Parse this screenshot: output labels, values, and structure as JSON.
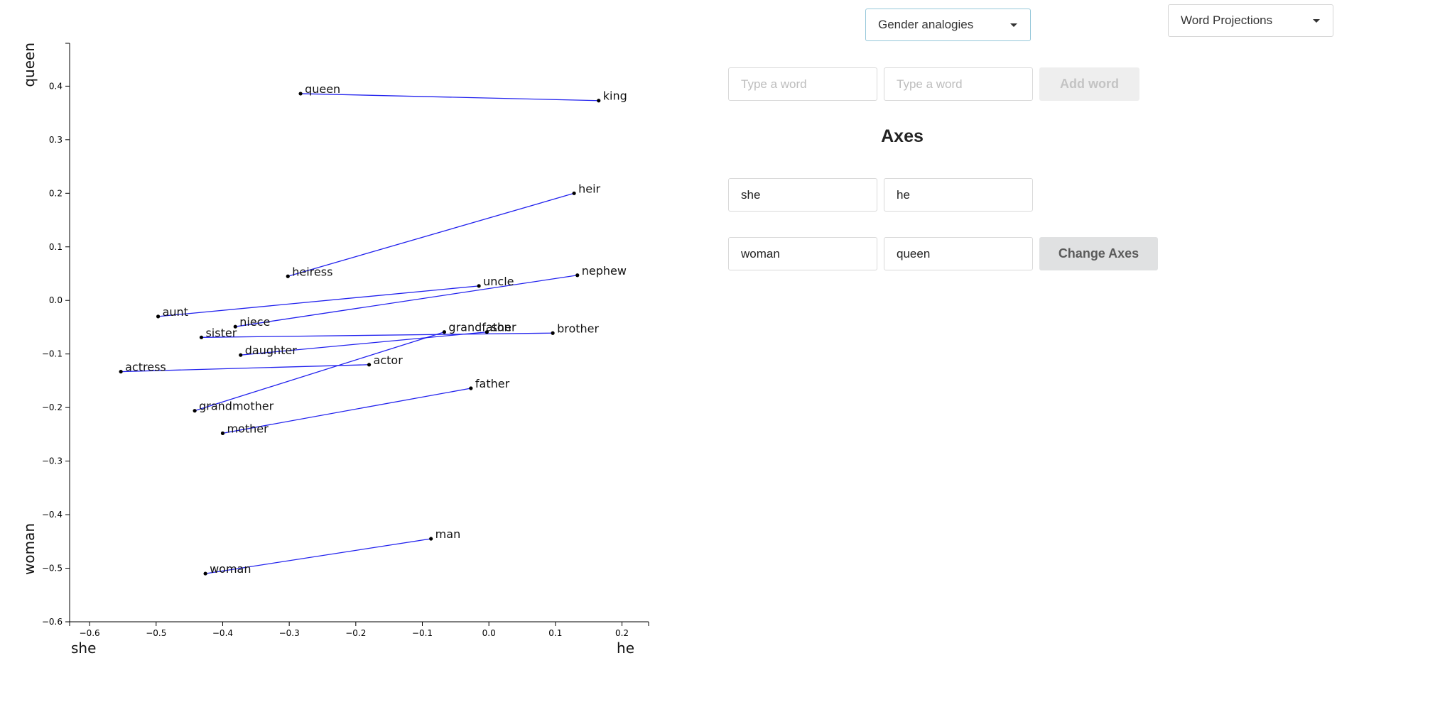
{
  "controls": {
    "analogy_select": "Gender analogies",
    "view_select": "Word Projections",
    "word_input_placeholder_1": "Type a word",
    "word_input_placeholder_2": "Type a word",
    "add_word_label": "Add word",
    "axes_heading": "Axes",
    "axis_x_neg": "she",
    "axis_x_pos": "he",
    "axis_y_neg": "woman",
    "axis_y_pos": "queen",
    "change_axes_label": "Change Axes"
  },
  "chart_data": {
    "type": "scatter",
    "xlabel_left": "she",
    "xlabel_right": "he",
    "ylabel_bottom": "woman",
    "ylabel_top": "queen",
    "xlim": [
      -0.63,
      0.24
    ],
    "ylim": [
      -0.6,
      0.48
    ],
    "x_ticks": [
      -0.6,
      -0.5,
      -0.4,
      -0.3,
      -0.2,
      -0.1,
      0.0,
      0.1,
      0.2
    ],
    "y_ticks": [
      0.4,
      0.3,
      0.2,
      0.1,
      0.0,
      -0.1,
      -0.2,
      -0.3,
      -0.4,
      -0.5,
      -0.6
    ],
    "grid": false,
    "line_color": "#2222ee",
    "points": [
      {
        "word": "queen",
        "x": -0.283,
        "y": 0.386
      },
      {
        "word": "king",
        "x": 0.165,
        "y": 0.373
      },
      {
        "word": "heir",
        "x": 0.128,
        "y": 0.2
      },
      {
        "word": "heiress",
        "x": -0.302,
        "y": 0.045
      },
      {
        "word": "uncle",
        "x": -0.015,
        "y": 0.027
      },
      {
        "word": "nephew",
        "x": 0.133,
        "y": 0.047
      },
      {
        "word": "aunt",
        "x": -0.497,
        "y": -0.03
      },
      {
        "word": "niece",
        "x": -0.381,
        "y": -0.049
      },
      {
        "word": "sister",
        "x": -0.432,
        "y": -0.069
      },
      {
        "word": "grandfather",
        "x": -0.067,
        "y": -0.059
      },
      {
        "word": "son",
        "x": -0.003,
        "y": -0.059
      },
      {
        "word": "brother",
        "x": 0.096,
        "y": -0.061
      },
      {
        "word": "daughter",
        "x": -0.373,
        "y": -0.102
      },
      {
        "word": "actor",
        "x": -0.18,
        "y": -0.12
      },
      {
        "word": "actress",
        "x": -0.553,
        "y": -0.133
      },
      {
        "word": "father",
        "x": -0.027,
        "y": -0.164
      },
      {
        "word": "grandmother",
        "x": -0.442,
        "y": -0.206
      },
      {
        "word": "mother",
        "x": -0.4,
        "y": -0.248
      },
      {
        "word": "man",
        "x": -0.087,
        "y": -0.445
      },
      {
        "word": "woman",
        "x": -0.426,
        "y": -0.51
      }
    ],
    "pairs": [
      [
        "queen",
        "king"
      ],
      [
        "heiress",
        "heir"
      ],
      [
        "aunt",
        "uncle"
      ],
      [
        "niece",
        "nephew"
      ],
      [
        "sister",
        "brother"
      ],
      [
        "daughter",
        "son"
      ],
      [
        "actress",
        "actor"
      ],
      [
        "grandmother",
        "grandfather"
      ],
      [
        "mother",
        "father"
      ],
      [
        "woman",
        "man"
      ]
    ]
  }
}
